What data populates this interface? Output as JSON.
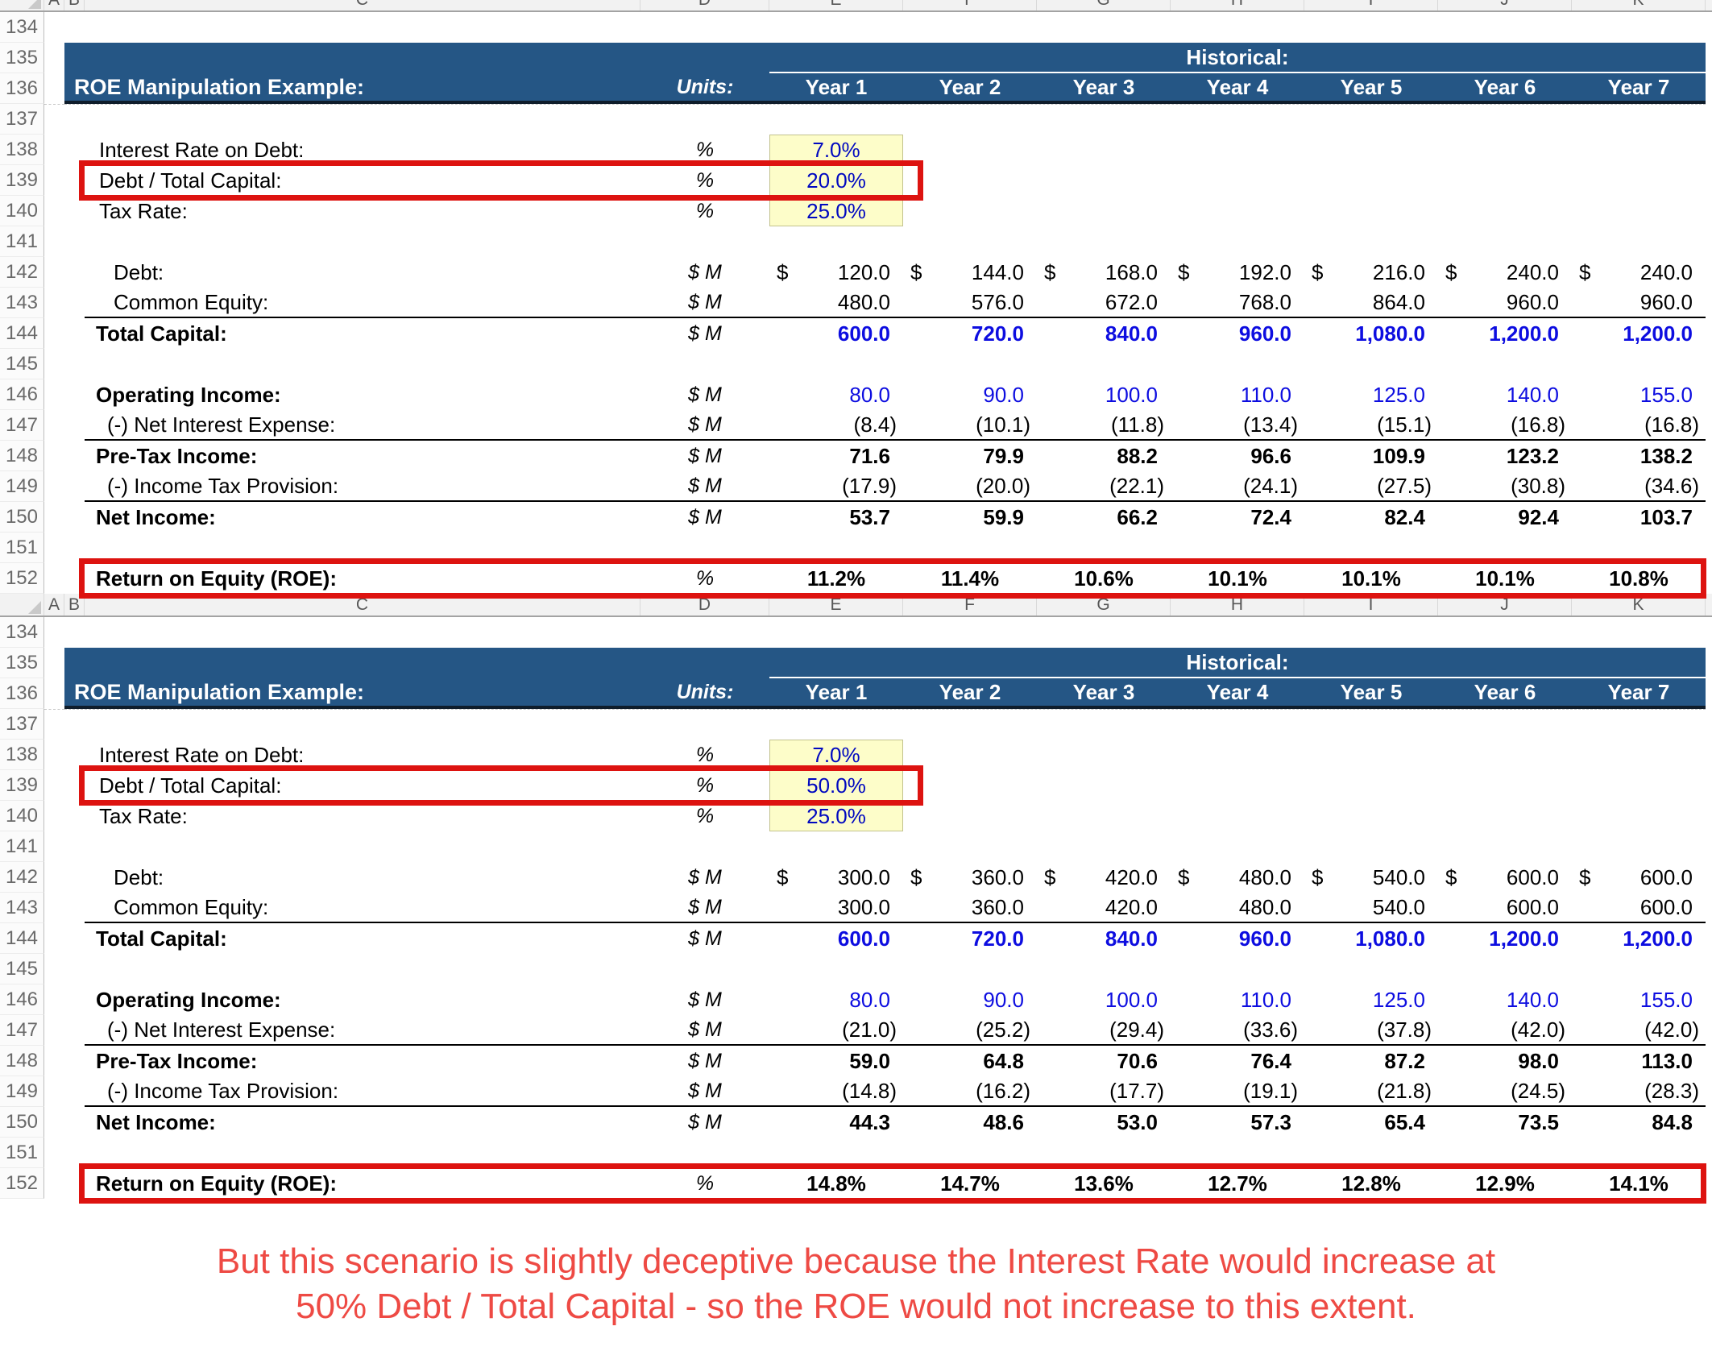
{
  "app_type": "excel-worksheet-comparison",
  "columns": [
    "A",
    "B",
    "C",
    "D",
    "E",
    "F",
    "G",
    "H",
    "I",
    "J",
    "K"
  ],
  "table_header": {
    "title": "ROE Manipulation Example:",
    "units": "Units:",
    "historical": "Historical:",
    "years": [
      "Year 1",
      "Year 2",
      "Year 3",
      "Year 4",
      "Year 5",
      "Year 6",
      "Year 7"
    ]
  },
  "sheets": [
    {
      "name": "scenario-debt-20pct",
      "rows": [
        {
          "num": "134",
          "type": "blank"
        },
        {
          "num": "135",
          "type": "banner_top"
        },
        {
          "num": "136",
          "type": "banner_main"
        },
        {
          "num": "137",
          "type": "blank",
          "pagebreak": true
        },
        {
          "num": "138",
          "type": "assume",
          "label": "Interest Rate on Debt:",
          "units": "%",
          "value": "7.0%"
        },
        {
          "num": "139",
          "type": "assume",
          "label": "Debt / Total Capital:",
          "units": "%",
          "value": "20.0%",
          "boxed": true
        },
        {
          "num": "140",
          "type": "assume",
          "label": "Tax Rate:",
          "units": "%",
          "value": "25.0%"
        },
        {
          "num": "141",
          "type": "blank"
        },
        {
          "num": "142",
          "type": "data",
          "label": "Debt:",
          "lstyle": "plain",
          "units": "$ M",
          "dollar": true,
          "values": [
            "120.0",
            "144.0",
            "168.0",
            "192.0",
            "216.0",
            "240.0",
            "240.0"
          ]
        },
        {
          "num": "143",
          "type": "data",
          "label": "Common Equity:",
          "lstyle": "plain",
          "units": "$ M",
          "rule": true,
          "values": [
            "480.0",
            "576.0",
            "672.0",
            "768.0",
            "864.0",
            "960.0",
            "960.0"
          ]
        },
        {
          "num": "144",
          "type": "data",
          "label": "Total Capital:",
          "lstyle": "bold",
          "vstyle": "blue-bold",
          "units": "$ M",
          "values": [
            "600.0",
            "720.0",
            "840.0",
            "960.0",
            "1,080.0",
            "1,200.0",
            "1,200.0"
          ]
        },
        {
          "num": "145",
          "type": "blank"
        },
        {
          "num": "146",
          "type": "data",
          "label": "Operating Income:",
          "lstyle": "bold",
          "vstyle": "blue",
          "units": "$ M",
          "values": [
            "80.0",
            "90.0",
            "100.0",
            "110.0",
            "125.0",
            "140.0",
            "155.0"
          ]
        },
        {
          "num": "147",
          "type": "data",
          "label": "(-) Net Interest Expense:",
          "lstyle": "sub",
          "units": "$ M",
          "rule": true,
          "values": [
            "(8.4)",
            "(10.1)",
            "(11.8)",
            "(13.4)",
            "(15.1)",
            "(16.8)",
            "(16.8)"
          ]
        },
        {
          "num": "148",
          "type": "data",
          "label": "Pre-Tax Income:",
          "lstyle": "bold",
          "vstyle": "bold",
          "units": "$ M",
          "values": [
            "71.6",
            "79.9",
            "88.2",
            "96.6",
            "109.9",
            "123.2",
            "138.2"
          ]
        },
        {
          "num": "149",
          "type": "data",
          "label": "(-) Income Tax Provision:",
          "lstyle": "sub",
          "units": "$ M",
          "rule": true,
          "values": [
            "(17.9)",
            "(20.0)",
            "(22.1)",
            "(24.1)",
            "(27.5)",
            "(30.8)",
            "(34.6)"
          ]
        },
        {
          "num": "150",
          "type": "data",
          "label": "Net Income:",
          "lstyle": "bold",
          "vstyle": "bold",
          "units": "$ M",
          "values": [
            "53.7",
            "59.9",
            "66.2",
            "72.4",
            "82.4",
            "92.4",
            "103.7"
          ]
        },
        {
          "num": "151",
          "type": "blank"
        },
        {
          "num": "152",
          "type": "data",
          "label": "Return on Equity (ROE):",
          "lstyle": "bold",
          "vstyle": "bold",
          "units": "%",
          "center": true,
          "roe_box": true,
          "values": [
            "11.2%",
            "11.4%",
            "10.6%",
            "10.1%",
            "10.1%",
            "10.1%",
            "10.8%"
          ]
        }
      ]
    },
    {
      "name": "scenario-debt-50pct",
      "rows": [
        {
          "num": "134",
          "type": "blank"
        },
        {
          "num": "135",
          "type": "banner_top"
        },
        {
          "num": "136",
          "type": "banner_main"
        },
        {
          "num": "137",
          "type": "blank",
          "pagebreak": true
        },
        {
          "num": "138",
          "type": "assume",
          "label": "Interest Rate on Debt:",
          "units": "%",
          "value": "7.0%"
        },
        {
          "num": "139",
          "type": "assume",
          "label": "Debt / Total Capital:",
          "units": "%",
          "value": "50.0%",
          "boxed": true
        },
        {
          "num": "140",
          "type": "assume",
          "label": "Tax Rate:",
          "units": "%",
          "value": "25.0%"
        },
        {
          "num": "141",
          "type": "blank"
        },
        {
          "num": "142",
          "type": "data",
          "label": "Debt:",
          "lstyle": "plain",
          "units": "$ M",
          "dollar": true,
          "values": [
            "300.0",
            "360.0",
            "420.0",
            "480.0",
            "540.0",
            "600.0",
            "600.0"
          ]
        },
        {
          "num": "143",
          "type": "data",
          "label": "Common Equity:",
          "lstyle": "plain",
          "units": "$ M",
          "rule": true,
          "values": [
            "300.0",
            "360.0",
            "420.0",
            "480.0",
            "540.0",
            "600.0",
            "600.0"
          ]
        },
        {
          "num": "144",
          "type": "data",
          "label": "Total Capital:",
          "lstyle": "bold",
          "vstyle": "blue-bold",
          "units": "$ M",
          "values": [
            "600.0",
            "720.0",
            "840.0",
            "960.0",
            "1,080.0",
            "1,200.0",
            "1,200.0"
          ]
        },
        {
          "num": "145",
          "type": "blank"
        },
        {
          "num": "146",
          "type": "data",
          "label": "Operating Income:",
          "lstyle": "bold",
          "vstyle": "blue",
          "units": "$ M",
          "values": [
            "80.0",
            "90.0",
            "100.0",
            "110.0",
            "125.0",
            "140.0",
            "155.0"
          ]
        },
        {
          "num": "147",
          "type": "data",
          "label": "(-) Net Interest Expense:",
          "lstyle": "sub",
          "units": "$ M",
          "rule": true,
          "values": [
            "(21.0)",
            "(25.2)",
            "(29.4)",
            "(33.6)",
            "(37.8)",
            "(42.0)",
            "(42.0)"
          ]
        },
        {
          "num": "148",
          "type": "data",
          "label": "Pre-Tax Income:",
          "lstyle": "bold",
          "vstyle": "bold",
          "units": "$ M",
          "values": [
            "59.0",
            "64.8",
            "70.6",
            "76.4",
            "87.2",
            "98.0",
            "113.0"
          ]
        },
        {
          "num": "149",
          "type": "data",
          "label": "(-) Income Tax Provision:",
          "lstyle": "sub",
          "units": "$ M",
          "rule": true,
          "values": [
            "(14.8)",
            "(16.2)",
            "(17.7)",
            "(19.1)",
            "(21.8)",
            "(24.5)",
            "(28.3)"
          ]
        },
        {
          "num": "150",
          "type": "data",
          "label": "Net Income:",
          "lstyle": "bold",
          "vstyle": "bold",
          "units": "$ M",
          "values": [
            "44.3",
            "48.6",
            "53.0",
            "57.3",
            "65.4",
            "73.5",
            "84.8"
          ]
        },
        {
          "num": "151",
          "type": "blank"
        },
        {
          "num": "152",
          "type": "data",
          "label": "Return on Equity (ROE):",
          "lstyle": "bold",
          "vstyle": "bold",
          "units": "%",
          "center": true,
          "roe_box": true,
          "values": [
            "14.8%",
            "14.7%",
            "13.6%",
            "12.7%",
            "12.8%",
            "12.9%",
            "14.1%"
          ]
        }
      ]
    }
  ],
  "caption": {
    "line1": "But this scenario is slightly deceptive because the Interest Rate would increase at",
    "line2": "50% Debt / Total Capital - so the ROE would not increase to this extent."
  },
  "colors": {
    "banner_blue": "#255685",
    "input_fill": "#fdfdc9",
    "input_text": "#0008c0",
    "value_blue": "#0d0de0",
    "highlight_red": "#dd1310",
    "caption_red": "#ee4a44"
  }
}
